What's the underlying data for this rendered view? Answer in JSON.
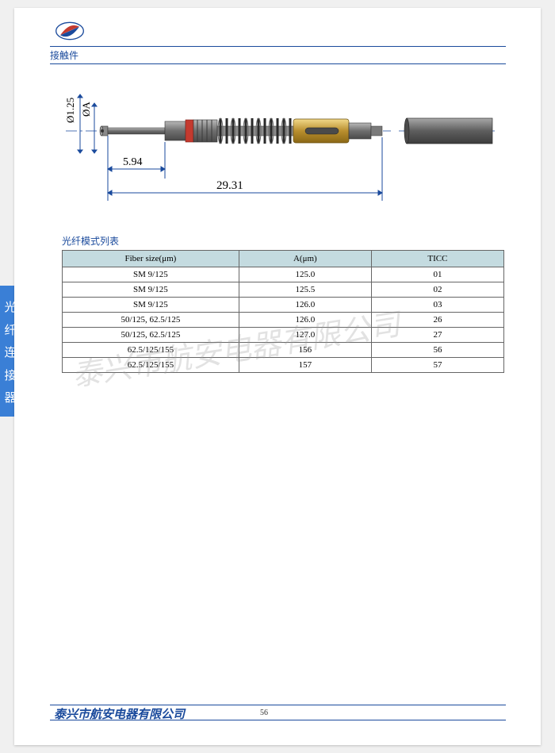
{
  "header": {
    "section_title": "接触件"
  },
  "side_tab": {
    "text": "光纤连接器"
  },
  "diagram": {
    "dim_diameter_outer": "Ø1.25",
    "dim_diameter_inner": "ØA",
    "dim_length_tip": "5.94",
    "dim_length_total": "29.31",
    "colors": {
      "body_gray": "#6e6e6e",
      "body_highlight": "#9a9a9a",
      "ring_red": "#c43a2f",
      "spring_gray": "#555555",
      "gold": "#b98f2e",
      "gold_light": "#e0c268",
      "tube_gray": "#6a6a6a",
      "line": "#1a4a9c"
    }
  },
  "table": {
    "title": "光纤模式列表",
    "columns": [
      "Fiber size(μm)",
      "A(μm)",
      "TICC"
    ],
    "rows": [
      [
        "SM 9/125",
        "125.0",
        "01"
      ],
      [
        "SM 9/125",
        "125.5",
        "02"
      ],
      [
        "SM 9/125",
        "126.0",
        "03"
      ],
      [
        "50/125, 62.5/125",
        "126.0",
        "26"
      ],
      [
        "50/125, 62.5/125",
        "127.0",
        "27"
      ],
      [
        "62.5/125/155",
        "156",
        "56"
      ],
      [
        "62.5/125/155",
        "157",
        "57"
      ]
    ],
    "col_widths": [
      "40%",
      "30%",
      "30%"
    ]
  },
  "watermark": {
    "text": "泰兴市航安电器有限公司"
  },
  "footer": {
    "company": "泰兴市航安电器有限公司",
    "page_number": "56"
  }
}
